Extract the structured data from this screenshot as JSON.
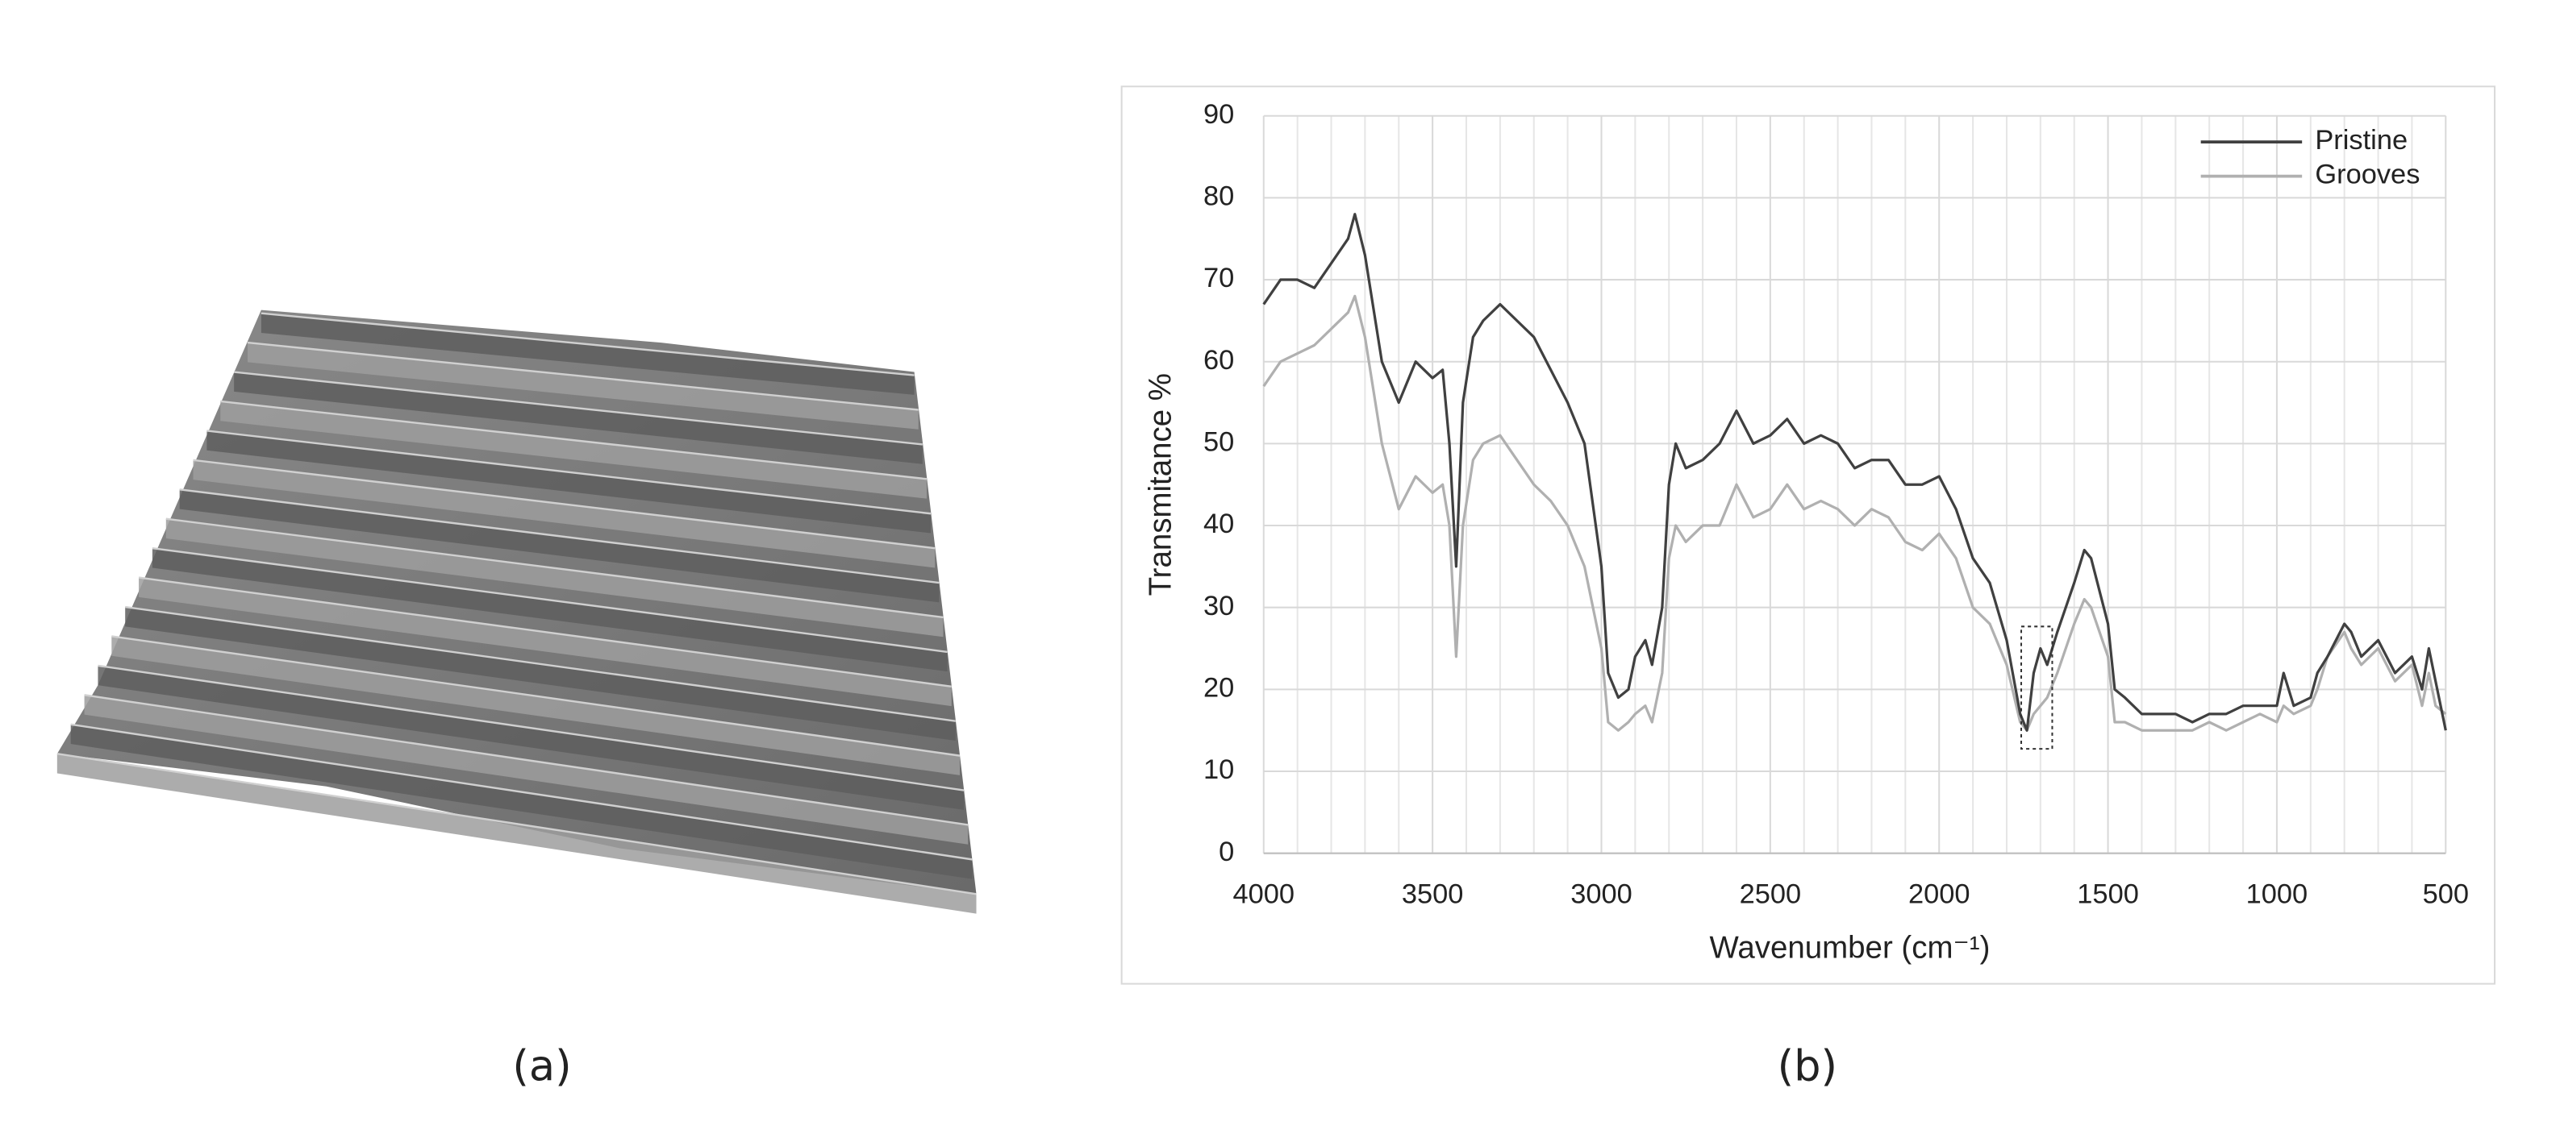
{
  "panel_labels": [
    "(a)",
    "(b)"
  ],
  "chart_data": {
    "type": "line",
    "ylabel": "Transmitance %",
    "xlabel": "Wavenumber  (cm⁻¹)",
    "x": [
      4000,
      3950,
      3900,
      3850,
      3800,
      3750,
      3730,
      3700,
      3650,
      3600,
      3550,
      3500,
      3470,
      3450,
      3430,
      3410,
      3380,
      3350,
      3300,
      3250,
      3200,
      3150,
      3100,
      3050,
      3000,
      2980,
      2950,
      2920,
      2900,
      2870,
      2850,
      2820,
      2800,
      2780,
      2750,
      2700,
      2650,
      2600,
      2550,
      2500,
      2450,
      2400,
      2350,
      2300,
      2250,
      2200,
      2150,
      2100,
      2050,
      2000,
      1950,
      1900,
      1850,
      1800,
      1760,
      1740,
      1720,
      1700,
      1680,
      1650,
      1600,
      1570,
      1550,
      1500,
      1480,
      1450,
      1400,
      1350,
      1300,
      1250,
      1200,
      1150,
      1100,
      1050,
      1000,
      980,
      950,
      900,
      880,
      850,
      800,
      780,
      750,
      700,
      650,
      600,
      570,
      550,
      530,
      500
    ],
    "series": [
      {
        "name": "Pristine",
        "color": "#404040",
        "values": [
          67,
          70,
          70,
          69,
          72,
          75,
          78,
          73,
          60,
          55,
          60,
          58,
          59,
          50,
          35,
          55,
          63,
          65,
          67,
          65,
          63,
          59,
          55,
          50,
          35,
          22,
          19,
          20,
          24,
          26,
          23,
          30,
          45,
          50,
          47,
          48,
          50,
          54,
          50,
          51,
          53,
          50,
          51,
          50,
          47,
          48,
          48,
          45,
          45,
          46,
          42,
          36,
          33,
          26,
          17,
          15,
          22,
          25,
          23,
          27,
          33,
          37,
          36,
          28,
          20,
          19,
          17,
          17,
          17,
          16,
          17,
          17,
          18,
          18,
          18,
          22,
          18,
          19,
          22,
          24,
          28,
          27,
          24,
          26,
          22,
          24,
          20,
          25,
          21,
          15
        ]
      },
      {
        "name": "Grooves",
        "color": "#b0b0b0",
        "values": [
          57,
          60,
          61,
          62,
          64,
          66,
          68,
          63,
          50,
          42,
          46,
          44,
          45,
          40,
          24,
          40,
          48,
          50,
          51,
          48,
          45,
          43,
          40,
          35,
          25,
          16,
          15,
          16,
          17,
          18,
          16,
          22,
          36,
          40,
          38,
          40,
          40,
          45,
          41,
          42,
          45,
          42,
          43,
          42,
          40,
          42,
          41,
          38,
          37,
          39,
          36,
          30,
          28,
          23,
          16,
          15,
          17,
          18,
          19,
          22,
          28,
          31,
          30,
          24,
          16,
          16,
          15,
          15,
          15,
          15,
          16,
          15,
          16,
          17,
          16,
          18,
          17,
          18,
          20,
          24,
          27,
          25,
          23,
          25,
          21,
          23,
          18,
          22,
          18,
          17
        ]
      }
    ],
    "xlim": [
      4000,
      500
    ],
    "xticks": [
      4000,
      3500,
      3000,
      2500,
      2000,
      1500,
      1000,
      500
    ],
    "ylim": [
      0,
      90
    ],
    "yticks": [
      0,
      10,
      20,
      30,
      40,
      50,
      60,
      70,
      80,
      90
    ],
    "grid": true,
    "legend": "upper right"
  }
}
